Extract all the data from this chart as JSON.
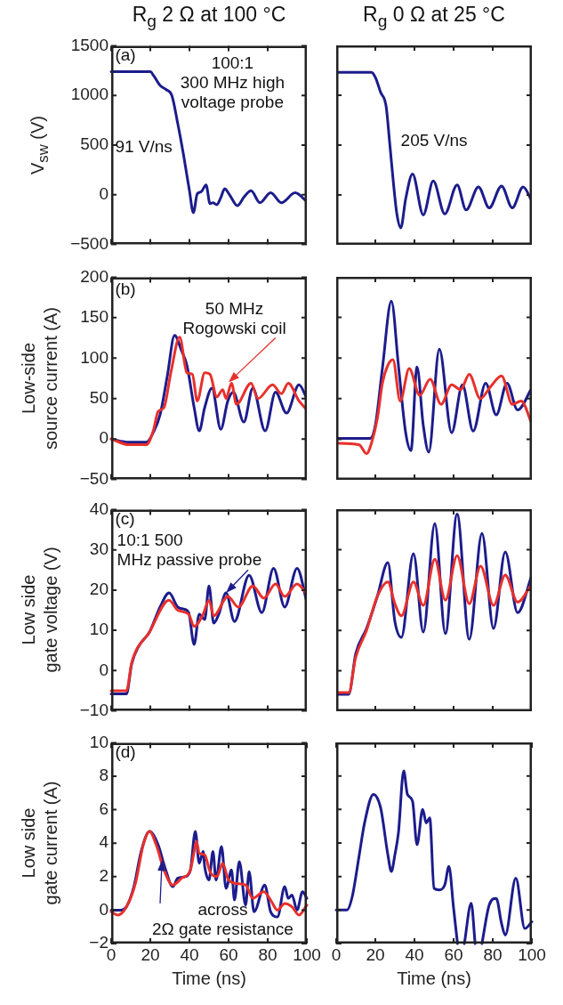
{
  "chart_data": [
    {
      "type": "line",
      "title": "R$_{g}$ 2 Ω at 100 °C",
      "ylabel": "V$_{sw}$ (V)",
      "xlim": [
        0,
        100
      ],
      "xticks": [
        0,
        20,
        40,
        60,
        80,
        100
      ],
      "ylim": [
        -500,
        1500
      ],
      "yticks": [
        {
          "value": -500,
          "label": "−500"
        },
        0,
        500,
        1000,
        1500
      ],
      "tick_labels": "y",
      "annotations": [
        "(a)",
        "100:1\n300 MHz high\nvoltage probe",
        "91 V/ns"
      ],
      "series": [
        {
          "color": "#1c1c8c",
          "x": [
            0,
            20,
            22,
            25,
            28,
            31,
            34,
            37,
            40,
            42,
            44,
            46,
            48.5,
            50.5,
            52,
            54,
            56,
            58,
            60.5,
            64.5,
            68,
            71.5,
            76,
            81.5,
            87,
            94,
            100
          ],
          "values": [
            1240,
            1240,
            1190,
            1100,
            1060,
            1000,
            720,
            400,
            40,
            -180,
            10,
            30,
            100,
            -90,
            -80,
            -100,
            -30,
            60,
            0,
            -110,
            -20,
            40,
            -80,
            20,
            -80,
            20,
            -70
          ]
        }
      ]
    },
    {
      "type": "line",
      "title": "R$_{g}$ 0 Ω at 25 °C",
      "xlim": [
        0,
        100
      ],
      "xticks": [
        0,
        20,
        40,
        60,
        80,
        100
      ],
      "ylim": [
        -500,
        1500
      ],
      "yticks": [
        -500,
        0,
        500,
        1000,
        1500
      ],
      "tick_labels": false,
      "annotations": [
        "205 V/ns"
      ],
      "series": [
        {
          "color": "#1c1c8c",
          "x": [
            0,
            18,
            20,
            22.7,
            25.5,
            27.3,
            29,
            31,
            33,
            35.5,
            39,
            44.5,
            49.6,
            55.5,
            61.8,
            66.4,
            72.7,
            78.2,
            84.5,
            90,
            95.5,
            100
          ],
          "values": [
            1230,
            1230,
            1180,
            1030,
            890,
            530,
            170,
            -190,
            -330,
            -40,
            210,
            -200,
            140,
            -190,
            100,
            -150,
            80,
            -130,
            90,
            -130,
            80,
            -60
          ]
        }
      ]
    },
    {
      "type": "line",
      "ylabel": "Low-side\nsource current (A)",
      "xlim": [
        0,
        100
      ],
      "xticks": [
        0,
        20,
        40,
        60,
        80,
        100
      ],
      "ylim": [
        -50,
        200
      ],
      "yticks": [
        {
          "value": -50,
          "label": "−50"
        },
        0,
        50,
        100,
        150,
        200
      ],
      "tick_labels": "y",
      "annotations": [
        "(b)",
        {
          "text": "50 MHz\nRogowski coil",
          "x": 60,
          "y": 70
        }
      ],
      "series": [
        {
          "color": "#1c1c8c",
          "x": [
            0,
            9,
            18,
            21.5,
            25,
            28.7,
            32.4,
            36,
            38.7,
            42.4,
            45,
            47.8,
            51.5,
            56,
            59.6,
            62.4,
            67.8,
            72.4,
            78.7,
            84,
            89.6,
            96,
            100
          ],
          "values": [
            0,
            -4,
            -4,
            8,
            30,
            78,
            128,
            109,
            91,
            39,
            10,
            39,
            63,
            12,
            47,
            58,
            21,
            63,
            10,
            58,
            32,
            67,
            50
          ]
        },
        {
          "color": "#e8302c",
          "x": [
            0,
            9,
            18,
            21.5,
            24,
            27,
            30.5,
            35,
            38.7,
            41.5,
            44,
            47.8,
            50.5,
            54,
            57,
            58.7,
            61.5,
            64,
            71.5,
            75,
            82.5,
            87,
            90.5,
            96,
            100
          ],
          "values": [
            0,
            -7,
            -7,
            10,
            34,
            39,
            82,
            126,
            82,
            80,
            47,
            82,
            80,
            52,
            61,
            50,
            69,
            43,
            69,
            50,
            67,
            56,
            69,
            47,
            36
          ]
        }
      ]
    },
    {
      "type": "line",
      "xlim": [
        0,
        100
      ],
      "xticks": [
        0,
        20,
        40,
        60,
        80,
        100
      ],
      "ylim": [
        -50,
        200
      ],
      "yticks": [
        -50,
        0,
        50,
        100,
        150,
        200
      ],
      "tick_labels": false,
      "series": [
        {
          "color": "#1c1c8c",
          "x": [
            0,
            17.3,
            20,
            23.6,
            28.2,
            31.8,
            35.5,
            38.2,
            41.3,
            44.5,
            47.3,
            52.7,
            59,
            64.5,
            70,
            76.4,
            81.8,
            87.3,
            92.7,
            100
          ],
          "values": [
            1,
            1,
            17,
            87,
            170,
            91,
            8,
            -14,
            89,
            17,
            -16,
            111,
            8,
            67,
            10,
            69,
            30,
            69,
            36,
            63
          ]
        },
        {
          "color": "#e8302c",
          "x": [
            0,
            11.8,
            15.5,
            18,
            21,
            23.6,
            26.4,
            29,
            32.7,
            37.3,
            42.7,
            48,
            53.6,
            59,
            63.6,
            68,
            73.6,
            79,
            84.5,
            90,
            94.5,
            100
          ],
          "values": [
            -5,
            -7,
            -18,
            -5,
            25,
            69,
            91,
            98,
            47,
            87,
            54,
            74,
            43,
            67,
            61,
            80,
            50,
            65,
            78,
            43,
            47,
            19
          ]
        }
      ]
    },
    {
      "type": "line",
      "ylabel": "Low side\ngate voltage (V)",
      "xlim": [
        0,
        100
      ],
      "xticks": [
        0,
        20,
        40,
        60,
        80,
        100
      ],
      "ylim": [
        -10,
        40
      ],
      "yticks": [
        {
          "value": -10,
          "label": "−10"
        },
        0,
        10,
        20,
        30,
        40
      ],
      "tick_labels": "y",
      "annotations": [
        "(c)",
        {
          "text": "10:1 500\nMHz passive probe",
          "x": 58.7,
          "y": 19.3
        }
      ],
      "series": [
        {
          "color": "#1c1c8c",
          "x": [
            0,
            7.8,
            10.5,
            14,
            19.6,
            25,
            29.6,
            34,
            37,
            39.6,
            42.4,
            45,
            47.8,
            50,
            52.4,
            55,
            58.7,
            63,
            70.5,
            77,
            83,
            88.7,
            95,
            100
          ],
          "values": [
            -5.8,
            -5.8,
            1.7,
            6,
            9.6,
            15.8,
            19.3,
            15.8,
            15.3,
            14.4,
            6.5,
            14,
            12.7,
            21,
            11.8,
            14,
            19.3,
            12.2,
            23.7,
            14.4,
            25.4,
            15.8,
            25.4,
            17
          ]
        },
        {
          "color": "#e8302c",
          "x": [
            0,
            7.8,
            10.5,
            19.6,
            29.6,
            34,
            39.6,
            42.4,
            47,
            50,
            52.4,
            59.6,
            65,
            72.4,
            78,
            84,
            88.7,
            95,
            100
          ],
          "values": [
            -5,
            -5,
            2,
            9.6,
            17.5,
            15,
            14,
            11,
            14,
            17.5,
            13.6,
            18.4,
            15.8,
            21,
            18,
            21.5,
            18.4,
            21.5,
            19
          ]
        }
      ]
    },
    {
      "type": "line",
      "xlim": [
        0,
        100
      ],
      "xticks": [
        0,
        20,
        40,
        60,
        80,
        100
      ],
      "ylim": [
        -10,
        40
      ],
      "yticks": [
        -10,
        0,
        10,
        20,
        30,
        40
      ],
      "tick_labels": false,
      "series": [
        {
          "color": "#1c1c8c",
          "x": [
            0,
            6.4,
            10,
            15.5,
            21,
            26.4,
            30,
            33.3,
            39.5,
            44.5,
            50.4,
            55.8,
            61.8,
            68,
            74.5,
            80.4,
            86.4,
            92.7,
            100
          ],
          "values": [
            -5.8,
            -5.8,
            4.3,
            10.5,
            18.4,
            26.8,
            12.2,
            8.3,
            29,
            9.6,
            36.4,
            9.2,
            38.8,
            7.8,
            34,
            10.5,
            29.4,
            14.4,
            23.7
          ]
        },
        {
          "color": "#e8302c",
          "x": [
            0,
            6.4,
            10,
            15.5,
            21,
            26.4,
            30,
            33.3,
            39.5,
            44.5,
            50.4,
            55.8,
            61.8,
            68,
            73.8,
            80.4,
            86.4,
            92.7,
            100
          ],
          "values": [
            -5.4,
            -5.4,
            3.4,
            10,
            18.4,
            22,
            16.6,
            13.6,
            22,
            16.2,
            27.6,
            17.5,
            28.5,
            16.6,
            25.9,
            16.2,
            23.7,
            17,
            21.5
          ]
        }
      ]
    },
    {
      "type": "line",
      "ylabel": "Low side\ngate current (A)",
      "xlabel": "Time (ns)",
      "xlim": [
        0,
        100
      ],
      "xticks": [
        0,
        20,
        40,
        60,
        80,
        100
      ],
      "ylim": [
        -2,
        10
      ],
      "yticks": [
        {
          "value": -2,
          "label": "−2"
        },
        0,
        2,
        4,
        6,
        8,
        10
      ],
      "annotations": [
        "(d)",
        {
          "text": "across\n2Ω gate resistance",
          "x": 26,
          "y": 3
        }
      ],
      "series": [
        {
          "color": "#1c1c8c",
          "x": [
            0,
            5,
            7.8,
            11.6,
            15.3,
            19.6,
            24,
            27.6,
            31.5,
            34,
            37.8,
            40.5,
            43,
            45,
            47,
            47.8,
            50,
            52,
            53.6,
            56.4,
            58.7,
            61.5,
            63,
            65.5,
            68.7,
            70.5,
            73,
            78.5,
            81.5,
            85,
            88.7,
            90.5,
            92.4,
            95,
            97.8,
            100
          ],
          "values": [
            0,
            0,
            0.2,
            1.4,
            3.5,
            4.7,
            3.9,
            2.5,
            1.4,
            1.9,
            2,
            2.4,
            4.7,
            2.8,
            3.5,
            2.6,
            1.8,
            3.5,
            1.8,
            3.8,
            1.3,
            2.4,
            0.6,
            2.9,
            0.3,
            2.3,
            -0.1,
            1.5,
            -0.1,
            -0.4,
            1.4,
            0.7,
            0.9,
            0,
            1.1,
            0.7
          ]
        },
        {
          "color": "#e8302c",
          "x": [
            0,
            3.3,
            7.8,
            12.4,
            16.4,
            19.6,
            23,
            27,
            31.5,
            36,
            40.5,
            42.4,
            43.6,
            45,
            47.8,
            50.5,
            54,
            57,
            59.6,
            63,
            68.7,
            72.4,
            78,
            81.5,
            85,
            88.7,
            92.4,
            96,
            100
          ],
          "values": [
            -0.1,
            -0.3,
            0.2,
            1.6,
            3.9,
            4.7,
            3.9,
            2.4,
            1.5,
            1.9,
            2.4,
            3.5,
            4.1,
            3.4,
            3.3,
            2.3,
            2,
            2.8,
            1.9,
            1.6,
            1.5,
            0.7,
            1.1,
            0.6,
            0,
            0.4,
            0.2,
            -0.3,
            0.3
          ]
        }
      ]
    },
    {
      "type": "line",
      "xlabel": "Time (ns)",
      "xlim": [
        0,
        100
      ],
      "xticks": [
        0,
        20,
        40,
        60,
        80,
        100
      ],
      "ylim": [
        -2,
        10
      ],
      "yticks": [
        -2,
        0,
        2,
        4,
        6,
        8,
        10
      ],
      "tick_labels": "x",
      "series": [
        {
          "color": "#1c1c8c",
          "x": [
            0,
            5.5,
            8.2,
            11.8,
            14.5,
            19,
            22.7,
            26.4,
            28.2,
            30,
            31.8,
            34.5,
            36.4,
            39,
            41.3,
            44.2,
            46,
            47.8,
            50,
            52.7,
            55.5,
            57.6,
            60,
            62,
            63.5,
            65.5,
            69,
            71,
            72.5,
            74.5,
            78.2,
            81.8,
            84.5,
            86.4,
            91.8,
            96.4,
            100
          ],
          "values": [
            0,
            0,
            0.8,
            3.3,
            5.2,
            6.9,
            6.1,
            3.3,
            2.3,
            3.3,
            4.6,
            8.3,
            6.9,
            6.5,
            3.9,
            6,
            5.2,
            5.5,
            1.3,
            1.2,
            1.5,
            2.6,
            0.1,
            -2,
            null,
            -2,
            0.4,
            -2,
            null,
            -2,
            0.3,
            0.7,
            -0.8,
            -1.5,
            1.9,
            -1.1,
            -0.7
          ]
        }
      ]
    }
  ]
}
